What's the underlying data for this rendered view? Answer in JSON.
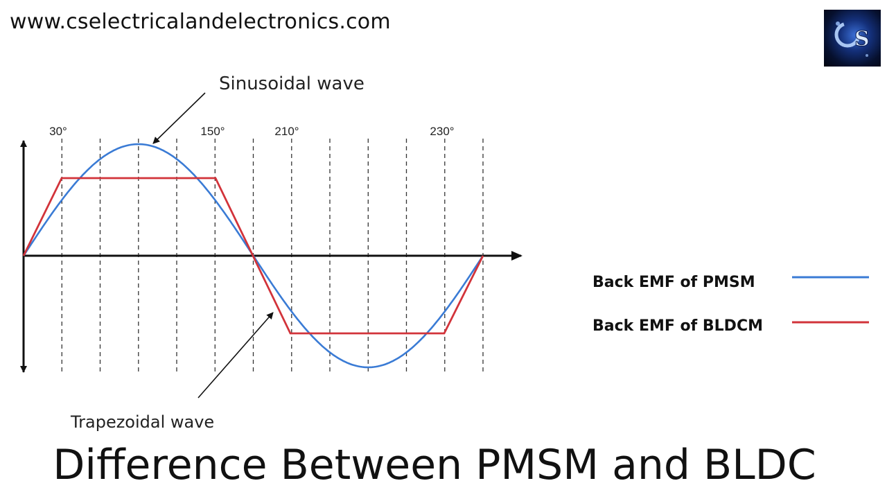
{
  "site": {
    "url": "www.cselectricalandelectronics.com"
  },
  "title": "Difference Between PMSM and BLDC",
  "colors": {
    "pmsm": "#3a7bd5",
    "bldc": "#d2333a",
    "axis": "#111111",
    "grid": "#333333"
  },
  "diagram": {
    "tick_labels": [
      "30°",
      "150°",
      "210°",
      "230°"
    ],
    "annotations": {
      "sinusoidal": "Sinusoidal wave",
      "trapezoidal": "Trapezoidal wave"
    },
    "legend": [
      {
        "label": "Back EMF of PMSM",
        "color": "#3a7bd5"
      },
      {
        "label": "Back EMF of BLDCM",
        "color": "#d2333a"
      }
    ]
  }
}
